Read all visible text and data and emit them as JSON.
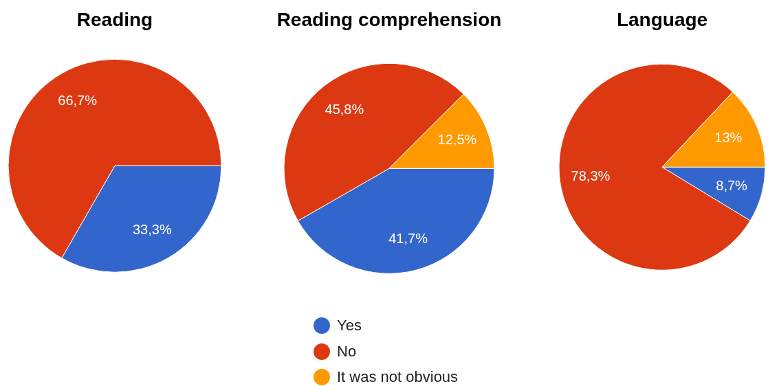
{
  "chart_data": [
    {
      "type": "pie",
      "title": "Reading",
      "categories": [
        null,
        null
      ],
      "values": [
        33.3,
        66.7
      ],
      "colors": [
        "#3366cc",
        "#dc3912"
      ],
      "value_labels": [
        "33,3%",
        "66,7%"
      ]
    },
    {
      "type": "pie",
      "title": "Reading comprehension",
      "categories": [
        "Yes",
        "No",
        "It was not obvious"
      ],
      "values": [
        41.7,
        45.8,
        12.5
      ],
      "colors": [
        "#3366cc",
        "#dc3912",
        "#ff9900"
      ],
      "value_labels": [
        "41,7%",
        "45,8%",
        "12,5%"
      ],
      "legend": "bottom"
    },
    {
      "type": "pie",
      "title": "Language",
      "categories": [
        null,
        null,
        null
      ],
      "values": [
        8.7,
        78.3,
        13
      ],
      "colors": [
        "#3366cc",
        "#dc3912",
        "#ff9900"
      ],
      "value_labels": [
        "8,7%",
        "78,3%",
        "13%"
      ]
    }
  ]
}
